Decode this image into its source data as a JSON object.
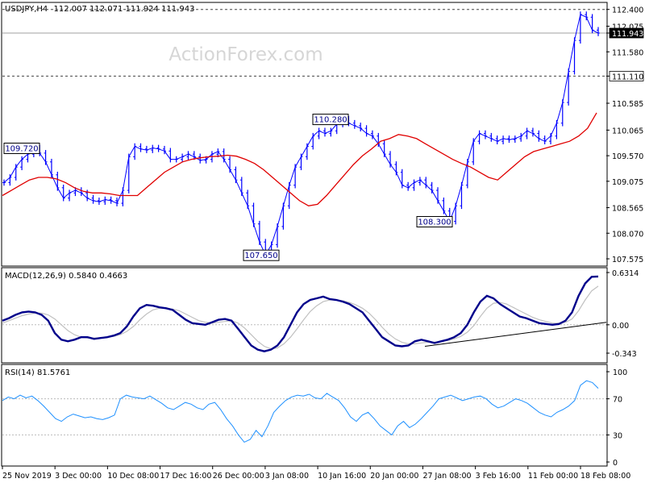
{
  "header": {
    "symbol": "USDJPY,H4",
    "ohlc": "112.007 112.071 111.924 111.943",
    "watermark": "ActionForex.com"
  },
  "colors": {
    "price": "#0000ff",
    "ma": "#e00000",
    "macd": "#00008b",
    "signal": "#c0c0c0",
    "rsi": "#1e90ff",
    "axis": "#000000",
    "dashed": "#444444"
  },
  "chart_data": [
    {
      "type": "line",
      "title": "USDJPY,H4",
      "ylim": [
        107.45,
        112.52
      ],
      "y_ticks": [
        "112.400",
        "112.075",
        "111.943",
        "111.580",
        "111.110",
        "110.585",
        "110.065",
        "109.570",
        "109.075",
        "108.565",
        "108.070",
        "107.575"
      ],
      "x_labels": [
        "25 Nov 2019",
        "3 Dec 00:00",
        "10 Dec 08:00",
        "17 Dec 16:00",
        "26 Dec 00:00",
        "3 Jan 08:00",
        "10 Jan 16:00",
        "20 Jan 00:00",
        "27 Jan 08:00",
        "3 Feb 16:00",
        "11 Feb 00:00",
        "18 Feb 08:00"
      ],
      "horizontal_levels": [
        112.4,
        111.11
      ],
      "last_price": 111.943,
      "price_labels": [
        {
          "text": "109.720",
          "value": 109.72
        },
        {
          "text": "110.280",
          "value": 110.28
        },
        {
          "text": "107.650",
          "value": 107.65
        },
        {
          "text": "108.300",
          "value": 108.3
        }
      ],
      "series": [
        {
          "values": [
            109.05,
            109.15,
            109.35,
            109.5,
            109.6,
            109.72,
            109.62,
            109.45,
            109.2,
            108.95,
            108.75,
            108.85,
            108.9,
            108.85,
            108.75,
            108.7,
            108.68,
            108.72,
            108.7,
            108.65,
            108.9,
            109.55,
            109.75,
            109.7,
            109.68,
            109.72,
            109.7,
            109.66,
            109.5,
            109.5,
            109.55,
            109.6,
            109.55,
            109.48,
            109.5,
            109.6,
            109.65,
            109.5,
            109.3,
            109.1,
            108.85,
            108.6,
            108.25,
            107.9,
            107.65,
            107.85,
            108.2,
            108.6,
            109.0,
            109.35,
            109.55,
            109.75,
            109.95,
            110.05,
            110.0,
            110.05,
            110.18,
            110.28,
            110.2,
            110.15,
            110.1,
            110.0,
            109.95,
            109.8,
            109.6,
            109.4,
            109.25,
            109.0,
            108.95,
            109.05,
            109.1,
            109.0,
            108.9,
            108.7,
            108.5,
            108.3,
            108.6,
            109.0,
            109.45,
            109.85,
            110.0,
            109.95,
            109.9,
            109.85,
            109.9,
            109.88,
            109.9,
            109.95,
            110.05,
            110.0,
            109.9,
            109.85,
            109.95,
            110.2,
            110.6,
            111.2,
            111.8,
            112.3,
            112.25,
            112.0,
            111.943
          ]
        },
        {
          "values": [
            108.8,
            108.9,
            109.0,
            109.1,
            109.15,
            109.15,
            109.12,
            109.05,
            108.95,
            108.88,
            108.85,
            108.85,
            108.83,
            108.8,
            108.8,
            108.8,
            108.95,
            109.1,
            109.25,
            109.35,
            109.45,
            109.5,
            109.53,
            109.55,
            109.56,
            109.58,
            109.56,
            109.5,
            109.42,
            109.3,
            109.15,
            109.0,
            108.85,
            108.7,
            108.6,
            108.63,
            108.8,
            109.0,
            109.2,
            109.4,
            109.57,
            109.7,
            109.85,
            109.9,
            109.98,
            109.95,
            109.9,
            109.8,
            109.7,
            109.6,
            109.5,
            109.42,
            109.35,
            109.25,
            109.15,
            109.1,
            109.25,
            109.4,
            109.55,
            109.65,
            109.7,
            109.75,
            109.8,
            109.85,
            109.95,
            110.1,
            110.4
          ]
        }
      ]
    },
    {
      "type": "line",
      "title": "MACD(12,26,9) 0.5840 0.4663",
      "ylim": [
        -0.45,
        0.68
      ],
      "y_ticks": [
        "0.6314",
        "0.00",
        "-0.343"
      ],
      "last_values": [
        0.584,
        0.4663
      ],
      "series": [
        {
          "values": [
            0.05,
            0.08,
            0.12,
            0.15,
            0.16,
            0.15,
            0.12,
            0.05,
            -0.1,
            -0.18,
            -0.2,
            -0.18,
            -0.15,
            -0.15,
            -0.17,
            -0.16,
            -0.15,
            -0.13,
            -0.1,
            -0.02,
            0.1,
            0.2,
            0.24,
            0.23,
            0.21,
            0.2,
            0.18,
            0.12,
            0.06,
            0.02,
            0.01,
            0.0,
            0.03,
            0.06,
            0.07,
            0.05,
            -0.05,
            -0.15,
            -0.25,
            -0.3,
            -0.32,
            -0.3,
            -0.25,
            -0.15,
            0.0,
            0.15,
            0.25,
            0.3,
            0.32,
            0.34,
            0.31,
            0.3,
            0.28,
            0.25,
            0.2,
            0.15,
            0.05,
            -0.05,
            -0.15,
            -0.2,
            -0.25,
            -0.26,
            -0.25,
            -0.2,
            -0.18,
            -0.2,
            -0.22,
            -0.2,
            -0.18,
            -0.15,
            -0.1,
            0.0,
            0.15,
            0.28,
            0.35,
            0.32,
            0.25,
            0.2,
            0.15,
            0.1,
            0.08,
            0.05,
            0.02,
            0.01,
            0.0,
            0.01,
            0.05,
            0.15,
            0.35,
            0.5,
            0.58,
            0.584
          ]
        },
        {
          "values": [
            0.02,
            0.05,
            0.08,
            0.11,
            0.13,
            0.14,
            0.14,
            0.12,
            0.07,
            0.0,
            -0.07,
            -0.12,
            -0.15,
            -0.16,
            -0.16,
            -0.16,
            -0.15,
            -0.14,
            -0.12,
            -0.08,
            -0.02,
            0.06,
            0.13,
            0.18,
            0.2,
            0.2,
            0.19,
            0.17,
            0.13,
            0.09,
            0.05,
            0.03,
            0.02,
            0.03,
            0.04,
            0.05,
            0.02,
            -0.04,
            -0.12,
            -0.2,
            -0.26,
            -0.29,
            -0.28,
            -0.23,
            -0.15,
            -0.05,
            0.06,
            0.16,
            0.23,
            0.28,
            0.3,
            0.3,
            0.29,
            0.27,
            0.24,
            0.2,
            0.14,
            0.06,
            -0.03,
            -0.11,
            -0.17,
            -0.21,
            -0.23,
            -0.23,
            -0.22,
            -0.21,
            -0.21,
            -0.2,
            -0.19,
            -0.17,
            -0.14,
            -0.09,
            -0.01,
            0.1,
            0.2,
            0.26,
            0.27,
            0.25,
            0.21,
            0.17,
            0.13,
            0.09,
            0.06,
            0.04,
            0.02,
            0.02,
            0.03,
            0.07,
            0.17,
            0.3,
            0.41,
            0.4663
          ]
        }
      ]
    },
    {
      "type": "line",
      "title": "RSI(14) 81.5761",
      "ylim": [
        0,
        100
      ],
      "y_ticks": [
        "100",
        "70",
        "30",
        "0"
      ],
      "levels": [
        70,
        30
      ],
      "last_value": 81.5761,
      "series": [
        {
          "values": [
            68,
            72,
            70,
            74,
            71,
            73,
            68,
            62,
            55,
            48,
            45,
            50,
            53,
            51,
            49,
            50,
            48,
            47,
            49,
            52,
            70,
            74,
            72,
            71,
            70,
            73,
            69,
            65,
            60,
            58,
            62,
            66,
            64,
            60,
            58,
            64,
            66,
            58,
            48,
            40,
            30,
            22,
            25,
            35,
            28,
            40,
            55,
            62,
            68,
            72,
            74,
            73,
            75,
            71,
            70,
            76,
            72,
            68,
            60,
            50,
            45,
            52,
            55,
            48,
            40,
            35,
            30,
            40,
            45,
            38,
            42,
            48,
            55,
            62,
            70,
            72,
            74,
            71,
            68,
            70,
            72,
            73,
            70,
            64,
            60,
            62,
            66,
            70,
            68,
            65,
            60,
            55,
            52,
            50,
            55,
            58,
            62,
            68,
            85,
            90,
            88,
            81.5761
          ]
        }
      ]
    }
  ]
}
